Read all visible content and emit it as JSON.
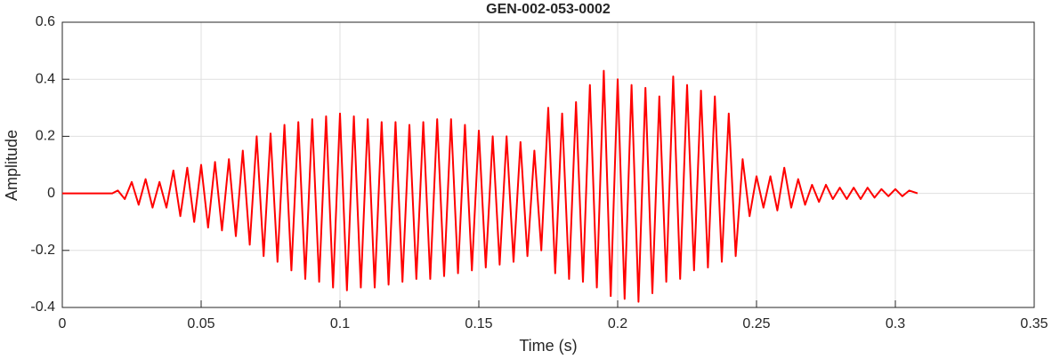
{
  "chart_data": {
    "type": "line",
    "title": "GEN-002-053-0002",
    "x_label": "Time (s)",
    "y_label": "Amplitude",
    "xlim": [
      0,
      0.35
    ],
    "xticks": [
      0,
      0.05,
      0.1,
      0.15,
      0.2,
      0.25,
      0.3,
      0.35
    ],
    "ylim": [
      -0.4,
      0.6
    ],
    "yticks": [
      -0.4,
      -0.2,
      0,
      0.2,
      0.4,
      0.6
    ],
    "grid": true,
    "x": [
      0,
      0.018,
      0.02,
      0.0225,
      0.025,
      0.0275,
      0.03,
      0.0325,
      0.035,
      0.0375,
      0.04,
      0.0425,
      0.045,
      0.0475,
      0.05,
      0.0525,
      0.055,
      0.0575,
      0.06,
      0.0625,
      0.065,
      0.0675,
      0.07,
      0.0725,
      0.075,
      0.0775,
      0.08,
      0.0825,
      0.085,
      0.0875,
      0.09,
      0.0925,
      0.095,
      0.0975,
      0.1,
      0.1025,
      0.105,
      0.1075,
      0.11,
      0.1125,
      0.115,
      0.1175,
      0.12,
      0.1225,
      0.125,
      0.1275,
      0.13,
      0.1325,
      0.135,
      0.1375,
      0.14,
      0.1425,
      0.145,
      0.1475,
      0.15,
      0.1525,
      0.155,
      0.1575,
      0.16,
      0.1625,
      0.165,
      0.1675,
      0.17,
      0.1725,
      0.175,
      0.1775,
      0.18,
      0.1825,
      0.185,
      0.1875,
      0.19,
      0.1925,
      0.195,
      0.1975,
      0.2,
      0.2025,
      0.205,
      0.2075,
      0.21,
      0.2125,
      0.215,
      0.2175,
      0.22,
      0.2225,
      0.225,
      0.2275,
      0.23,
      0.2325,
      0.235,
      0.2375,
      0.24,
      0.2425,
      0.245,
      0.2475,
      0.25,
      0.2525,
      0.255,
      0.2575,
      0.26,
      0.2625,
      0.265,
      0.2675,
      0.27,
      0.2725,
      0.275,
      0.2775,
      0.28,
      0.2825,
      0.285,
      0.2875,
      0.29,
      0.2925,
      0.295,
      0.2975,
      0.3,
      0.3025,
      0.305,
      0.308
    ],
    "series": [
      {
        "color": "#ff0000",
        "values": [
          0,
          0,
          0.01,
          -0.02,
          0.04,
          -0.04,
          0.05,
          -0.05,
          0.04,
          -0.05,
          0.08,
          -0.08,
          0.09,
          -0.1,
          0.1,
          -0.12,
          0.11,
          -0.13,
          0.12,
          -0.15,
          0.15,
          -0.18,
          0.2,
          -0.22,
          0.21,
          -0.24,
          0.24,
          -0.27,
          0.25,
          -0.3,
          0.26,
          -0.31,
          0.27,
          -0.33,
          0.28,
          -0.34,
          0.27,
          -0.33,
          0.26,
          -0.33,
          0.25,
          -0.32,
          0.25,
          -0.31,
          0.24,
          -0.3,
          0.25,
          -0.3,
          0.26,
          -0.29,
          0.26,
          -0.28,
          0.24,
          -0.27,
          0.22,
          -0.26,
          0.2,
          -0.25,
          0.2,
          -0.24,
          0.18,
          -0.22,
          0.15,
          -0.2,
          0.3,
          -0.28,
          0.28,
          -0.3,
          0.32,
          -0.31,
          0.38,
          -0.33,
          0.43,
          -0.36,
          0.4,
          -0.37,
          0.38,
          -0.38,
          0.37,
          -0.35,
          0.34,
          -0.31,
          0.41,
          -0.3,
          0.38,
          -0.27,
          0.36,
          -0.26,
          0.34,
          -0.24,
          0.28,
          -0.22,
          0.12,
          -0.08,
          0.06,
          -0.05,
          0.06,
          -0.06,
          0.09,
          -0.05,
          0.05,
          -0.04,
          0.03,
          -0.03,
          0.03,
          -0.02,
          0.02,
          -0.02,
          0.02,
          -0.02,
          0.02,
          -0.015,
          0.015,
          -0.01,
          0.015,
          -0.01,
          0.01,
          0
        ]
      }
    ]
  }
}
